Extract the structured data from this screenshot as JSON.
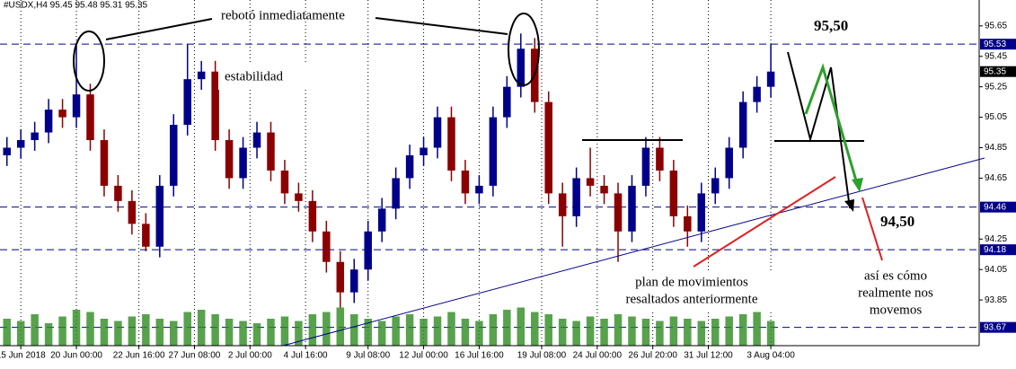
{
  "chart_data": {
    "type": "candlestick",
    "header": "#USDX,H4  95.45 95.48 95.31 95.35",
    "annotations": {
      "rebote": "rebotó inmediatamente",
      "estabilidad": "estabilidad",
      "target_high": "95,50",
      "target_low": "94,50",
      "plan": [
        "plan de movimientos",
        "resaltados anteriormente"
      ],
      "real": [
        "así es cómo",
        "realmente nos",
        "movemos"
      ]
    },
    "up_color": "#00008b",
    "down_color": "#8b0000",
    "volume_color": "#2e8b22",
    "level_color": "#00008b",
    "open": [
      94.8,
      94.85,
      94.9,
      94.95,
      95.1,
      95.05,
      95.2,
      94.9,
      94.6,
      94.5,
      94.35,
      94.2,
      94.6,
      95.0,
      95.3,
      95.35,
      94.9,
      94.65,
      94.85,
      94.95,
      94.7,
      94.55,
      94.5,
      94.3,
      94.1,
      93.9,
      94.05,
      94.3,
      94.45,
      94.65,
      94.8,
      94.85,
      95.05,
      94.7,
      94.55,
      94.6,
      95.05,
      95.25,
      95.5,
      95.15,
      94.55,
      94.4,
      94.65,
      94.6,
      94.55,
      94.3,
      94.6,
      94.85,
      94.7,
      94.4,
      94.3,
      94.55,
      94.65,
      94.85,
      95.15,
      95.25
    ],
    "high": [
      94.92,
      94.97,
      95.02,
      95.17,
      95.17,
      95.53,
      95.27,
      94.97,
      94.67,
      94.57,
      94.42,
      94.67,
      95.07,
      95.53,
      95.42,
      95.42,
      94.97,
      94.92,
      95.02,
      95.02,
      94.77,
      94.62,
      94.57,
      94.37,
      94.17,
      94.12,
      94.37,
      94.52,
      94.72,
      94.87,
      94.92,
      95.12,
      95.12,
      94.77,
      94.67,
      95.12,
      95.32,
      95.6,
      95.57,
      95.22,
      94.62,
      94.72,
      94.85,
      94.67,
      94.62,
      94.67,
      94.92,
      94.92,
      94.77,
      94.47,
      94.62,
      94.72,
      94.92,
      95.22,
      95.32,
      95.53
    ],
    "low": [
      94.73,
      94.78,
      94.83,
      94.88,
      94.98,
      94.98,
      94.83,
      94.53,
      94.43,
      94.28,
      94.17,
      94.13,
      94.53,
      94.93,
      95.23,
      94.83,
      94.58,
      94.58,
      94.78,
      94.63,
      94.48,
      94.43,
      94.23,
      94.03,
      93.8,
      93.83,
      93.98,
      94.23,
      94.38,
      94.58,
      94.73,
      94.78,
      94.63,
      94.48,
      94.48,
      94.53,
      94.98,
      95.18,
      95.08,
      94.48,
      94.2,
      94.33,
      94.53,
      94.48,
      94.1,
      94.23,
      94.53,
      94.63,
      94.33,
      94.2,
      94.23,
      94.48,
      94.58,
      94.78,
      95.08,
      95.18
    ],
    "close": [
      94.85,
      94.9,
      94.95,
      95.1,
      95.05,
      95.2,
      94.9,
      94.6,
      94.5,
      94.35,
      94.2,
      94.6,
      95.0,
      95.3,
      95.35,
      94.9,
      94.65,
      94.85,
      94.95,
      94.7,
      94.55,
      94.5,
      94.3,
      94.1,
      93.9,
      94.05,
      94.3,
      94.45,
      94.65,
      94.8,
      94.85,
      95.05,
      94.7,
      94.55,
      94.6,
      95.05,
      95.25,
      95.5,
      95.15,
      94.55,
      94.4,
      94.65,
      94.6,
      94.55,
      94.3,
      94.6,
      94.85,
      94.7,
      94.4,
      94.3,
      94.55,
      94.65,
      94.85,
      95.15,
      95.25,
      95.35
    ],
    "volume": [
      60,
      55,
      70,
      50,
      65,
      80,
      75,
      60,
      55,
      65,
      70,
      60,
      55,
      75,
      80,
      70,
      60,
      55,
      50,
      60,
      65,
      55,
      70,
      75,
      85,
      70,
      60,
      55,
      65,
      70,
      60,
      65,
      75,
      60,
      55,
      70,
      80,
      85,
      75,
      70,
      60,
      55,
      65,
      60,
      70,
      65,
      60,
      55,
      65,
      60,
      55,
      60,
      65,
      70,
      75,
      55
    ],
    "volume_lim": [
      0,
      100
    ],
    "xlim": [
      -0.5,
      70
    ],
    "ylim": [
      93.55,
      95.82
    ],
    "yticks": [
      95.65,
      95.45,
      95.25,
      95.05,
      94.85,
      94.65,
      94.25,
      94.05,
      93.85
    ],
    "xticks": [
      {
        "value": 1,
        "label": "15 Jun 2018"
      },
      {
        "value": 5,
        "label": "20 Jun 00:00"
      },
      {
        "value": 9.5,
        "label": "22 Jun 16:00"
      },
      {
        "value": 13.5,
        "label": "27 Jun 08:00"
      },
      {
        "value": 17.5,
        "label": "2 Jul 00:00"
      },
      {
        "value": 21.5,
        "label": "4 Jul 16:00"
      },
      {
        "value": 26,
        "label": "9 Jul 08:00"
      },
      {
        "value": 30,
        "label": "12 Jul 00:00"
      },
      {
        "value": 34,
        "label": "16 Jul 16:00"
      },
      {
        "value": 38.5,
        "label": "19 Jul 08:00"
      },
      {
        "value": 42.5,
        "label": "24 Jul 00:00"
      },
      {
        "value": 46.5,
        "label": "26 Jul 20:00"
      },
      {
        "value": 50.5,
        "label": "31 Jul 12:00"
      },
      {
        "value": 55,
        "label": "3 Aug 04:00"
      }
    ],
    "levels": [
      {
        "value": 95.53,
        "label": "95.53"
      },
      {
        "value": 94.46,
        "label": "94.46"
      },
      {
        "value": 94.18,
        "label": "94.18"
      },
      {
        "value": 93.67,
        "label": "93.67"
      }
    ],
    "current_price": {
      "value": 95.35,
      "label": "95.35"
    }
  }
}
